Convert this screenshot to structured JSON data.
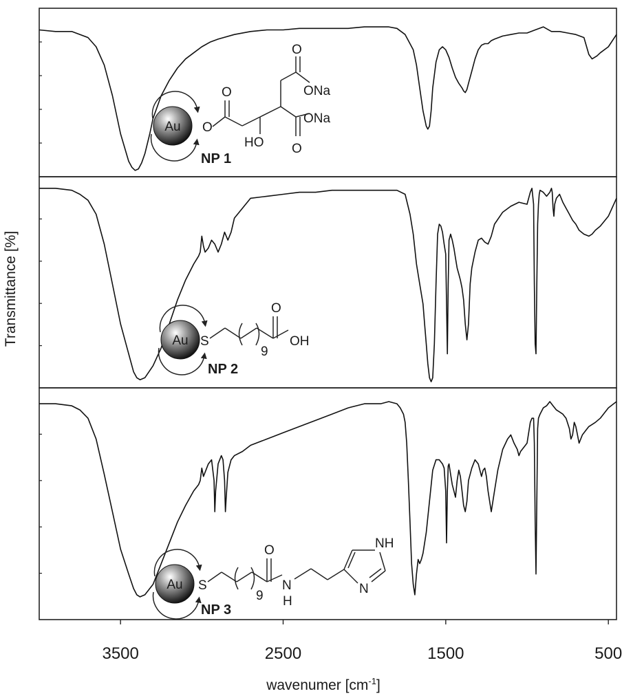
{
  "chart_data": {
    "type": "line",
    "xlabel": "wavenumer [cm",
    "xlabel_sup": "-1",
    "xlabel_end": "]",
    "ylabel": "Transmittance [%]",
    "xlim": [
      4000,
      450
    ],
    "x_reversed": true,
    "x_ticks": [
      3500,
      2500,
      1500,
      500
    ],
    "x_tick_labels": [
      "3500",
      "2500",
      "1500",
      "500"
    ],
    "grid": false,
    "panels": [
      {
        "name": "NP 1",
        "series": [
          {
            "x": [
              4000,
              3900,
              3800,
              3700,
              3650,
              3600,
              3550,
              3500,
              3450,
              3430,
              3410,
              3390,
              3370,
              3350,
              3320,
              3300,
              3250,
              3200,
              3150,
              3100,
              3050,
              3000,
              2950,
              2900,
              2800,
              2700,
              2600,
              2500,
              2400,
              2300,
              2200,
              2100,
              2000,
              1900,
              1850,
              1800,
              1750,
              1700,
              1680,
              1660,
              1640,
              1620,
              1610,
              1600,
              1590,
              1580,
              1560,
              1540,
              1520,
              1500,
              1480,
              1460,
              1440,
              1420,
              1400,
              1390,
              1380,
              1370,
              1360,
              1340,
              1320,
              1300,
              1280,
              1260,
              1240,
              1220,
              1200,
              1150,
              1100,
              1050,
              1000,
              950,
              900,
              850,
              800,
              750,
              700,
              650,
              620,
              600,
              570,
              550,
              500,
              450
            ],
            "y": [
              0.93,
              0.92,
              0.92,
              0.88,
              0.82,
              0.7,
              0.5,
              0.25,
              0.07,
              0.03,
              0.01,
              0.02,
              0.06,
              0.12,
              0.25,
              0.35,
              0.5,
              0.6,
              0.68,
              0.74,
              0.78,
              0.82,
              0.85,
              0.87,
              0.9,
              0.92,
              0.93,
              0.93,
              0.94,
              0.94,
              0.94,
              0.94,
              0.95,
              0.95,
              0.95,
              0.94,
              0.9,
              0.8,
              0.7,
              0.55,
              0.4,
              0.3,
              0.28,
              0.3,
              0.4,
              0.55,
              0.72,
              0.8,
              0.82,
              0.8,
              0.75,
              0.68,
              0.62,
              0.58,
              0.55,
              0.53,
              0.52,
              0.54,
              0.58,
              0.66,
              0.74,
              0.8,
              0.83,
              0.84,
              0.84,
              0.86,
              0.87,
              0.89,
              0.9,
              0.91,
              0.91,
              0.93,
              0.95,
              0.92,
              0.92,
              0.91,
              0.9,
              0.88,
              0.77,
              0.74,
              0.76,
              0.78,
              0.82,
              0.9
            ]
          }
        ]
      },
      {
        "name": "NP 2",
        "series": [
          {
            "x": [
              4000,
              3900,
              3800,
              3750,
              3700,
              3650,
              3600,
              3550,
              3500,
              3450,
              3420,
              3400,
              3380,
              3350,
              3300,
              3250,
              3200,
              3150,
              3100,
              3050,
              3020,
              3010,
              3000,
              2990,
              2980,
              2960,
              2940,
              2920,
              2900,
              2880,
              2860,
              2850,
              2840,
              2820,
              2800,
              2750,
              2700,
              2600,
              2500,
              2400,
              2300,
              2200,
              2100,
              2000,
              1900,
              1800,
              1750,
              1720,
              1700,
              1680,
              1660,
              1640,
              1630,
              1620,
              1610,
              1600,
              1590,
              1580,
              1570,
              1560,
              1550,
              1540,
              1530,
              1520,
              1510,
              1500,
              1495,
              1490,
              1485,
              1480,
              1470,
              1460,
              1450,
              1440,
              1430,
              1420,
              1410,
              1400,
              1390,
              1380,
              1370,
              1360,
              1350,
              1340,
              1320,
              1300,
              1280,
              1260,
              1240,
              1220,
              1200,
              1150,
              1100,
              1050,
              1000,
              980,
              970,
              960,
              955,
              950,
              945,
              940,
              935,
              930,
              925,
              920,
              900,
              880,
              860,
              850,
              845,
              840,
              835,
              830,
              820,
              800,
              780,
              760,
              740,
              720,
              700,
              680,
              650,
              620,
              600,
              580,
              550,
              500,
              450
            ],
            "y": [
              0.98,
              0.98,
              0.97,
              0.95,
              0.92,
              0.85,
              0.7,
              0.5,
              0.3,
              0.15,
              0.06,
              0.03,
              0.02,
              0.03,
              0.09,
              0.18,
              0.3,
              0.42,
              0.52,
              0.6,
              0.64,
              0.66,
              0.74,
              0.69,
              0.66,
              0.68,
              0.72,
              0.7,
              0.66,
              0.7,
              0.76,
              0.74,
              0.72,
              0.76,
              0.83,
              0.88,
              0.93,
              0.94,
              0.95,
              0.96,
              0.96,
              0.97,
              0.97,
              0.97,
              0.97,
              0.97,
              0.95,
              0.85,
              0.75,
              0.6,
              0.5,
              0.4,
              0.3,
              0.2,
              0.1,
              0.03,
              0.01,
              0.03,
              0.2,
              0.5,
              0.75,
              0.8,
              0.79,
              0.76,
              0.7,
              0.65,
              0.4,
              0.15,
              0.5,
              0.72,
              0.75,
              0.72,
              0.68,
              0.63,
              0.58,
              0.55,
              0.52,
              0.48,
              0.42,
              0.3,
              0.22,
              0.3,
              0.5,
              0.58,
              0.66,
              0.72,
              0.73,
              0.71,
              0.7,
              0.74,
              0.8,
              0.86,
              0.89,
              0.91,
              0.9,
              0.96,
              0.98,
              0.9,
              0.5,
              0.2,
              0.15,
              0.5,
              0.8,
              0.9,
              0.95,
              0.97,
              0.96,
              0.94,
              0.96,
              0.98,
              0.96,
              0.88,
              0.84,
              0.9,
              0.93,
              0.95,
              0.91,
              0.88,
              0.85,
              0.82,
              0.8,
              0.77,
              0.75,
              0.74,
              0.75,
              0.77,
              0.79,
              0.84,
              0.93
            ]
          }
        ]
      },
      {
        "name": "NP 3",
        "series": [
          {
            "x": [
              4000,
              3900,
              3800,
              3750,
              3700,
              3650,
              3600,
              3550,
              3500,
              3450,
              3420,
              3400,
              3380,
              3350,
              3300,
              3250,
              3200,
              3150,
              3100,
              3050,
              3020,
              3010,
              3000,
              2990,
              2980,
              2960,
              2940,
              2925,
              2920,
              2915,
              2900,
              2880,
              2870,
              2860,
              2855,
              2850,
              2840,
              2820,
              2800,
              2750,
              2700,
              2600,
              2500,
              2400,
              2300,
              2200,
              2100,
              2000,
              1900,
              1850,
              1800,
              1780,
              1760,
              1750,
              1740,
              1730,
              1720,
              1710,
              1700,
              1690,
              1680,
              1670,
              1660,
              1650,
              1640,
              1620,
              1600,
              1580,
              1560,
              1540,
              1520,
              1510,
              1500,
              1495,
              1490,
              1485,
              1480,
              1470,
              1460,
              1450,
              1440,
              1430,
              1420,
              1410,
              1400,
              1390,
              1380,
              1370,
              1360,
              1340,
              1320,
              1300,
              1280,
              1270,
              1260,
              1250,
              1240,
              1220,
              1200,
              1180,
              1150,
              1120,
              1100,
              1080,
              1060,
              1050,
              1040,
              1000,
              980,
              970,
              960,
              955,
              950,
              945,
              940,
              935,
              930,
              920,
              900,
              880,
              860,
              840,
              820,
              800,
              780,
              760,
              740,
              730,
              720,
              710,
              700,
              690,
              680,
              660,
              640,
              620,
              600,
              580,
              550,
              500,
              450
            ],
            "y": [
              0.97,
              0.97,
              0.96,
              0.94,
              0.9,
              0.8,
              0.63,
              0.45,
              0.27,
              0.15,
              0.08,
              0.05,
              0.04,
              0.05,
              0.1,
              0.2,
              0.3,
              0.4,
              0.48,
              0.55,
              0.58,
              0.6,
              0.66,
              0.62,
              0.64,
              0.68,
              0.7,
              0.6,
              0.45,
              0.55,
              0.68,
              0.72,
              0.7,
              0.6,
              0.45,
              0.52,
              0.64,
              0.7,
              0.72,
              0.74,
              0.77,
              0.8,
              0.83,
              0.86,
              0.89,
              0.92,
              0.95,
              0.97,
              0.97,
              0.98,
              0.97,
              0.95,
              0.92,
              0.88,
              0.78,
              0.6,
              0.4,
              0.2,
              0.1,
              0.05,
              0.15,
              0.22,
              0.2,
              0.22,
              0.25,
              0.35,
              0.5,
              0.65,
              0.7,
              0.7,
              0.68,
              0.66,
              0.55,
              0.3,
              0.55,
              0.67,
              0.68,
              0.63,
              0.58,
              0.55,
              0.52,
              0.6,
              0.65,
              0.62,
              0.55,
              0.48,
              0.45,
              0.5,
              0.6,
              0.66,
              0.7,
              0.68,
              0.62,
              0.65,
              0.66,
              0.62,
              0.55,
              0.45,
              0.55,
              0.65,
              0.75,
              0.8,
              0.82,
              0.78,
              0.75,
              0.72,
              0.74,
              0.78,
              0.88,
              0.9,
              0.9,
              0.78,
              0.4,
              0.15,
              0.5,
              0.85,
              0.9,
              0.92,
              0.95,
              0.96,
              0.98,
              0.96,
              0.94,
              0.93,
              0.92,
              0.9,
              0.85,
              0.8,
              0.82,
              0.88,
              0.86,
              0.82,
              0.78,
              0.82,
              0.84,
              0.86,
              0.87,
              0.88,
              0.9,
              0.95,
              0.98
            ]
          }
        ]
      }
    ]
  },
  "molecules": {
    "np1": {
      "core": "Au",
      "O_link": "O",
      "O_top": "O",
      "ONa_top": "ONa",
      "ONa_bottom": "ONa",
      "HO": "HO",
      "O_bottom": "O",
      "O_left": "O"
    },
    "np2": {
      "core": "Au",
      "S": "S",
      "sub": "9",
      "O_top": "O",
      "OH": "OH"
    },
    "np3": {
      "core": "Au",
      "S": "S",
      "sub": "9",
      "O_top": "O",
      "N": "N",
      "H": "H",
      "NH_ring": "NH",
      "N_ring": "N"
    }
  }
}
